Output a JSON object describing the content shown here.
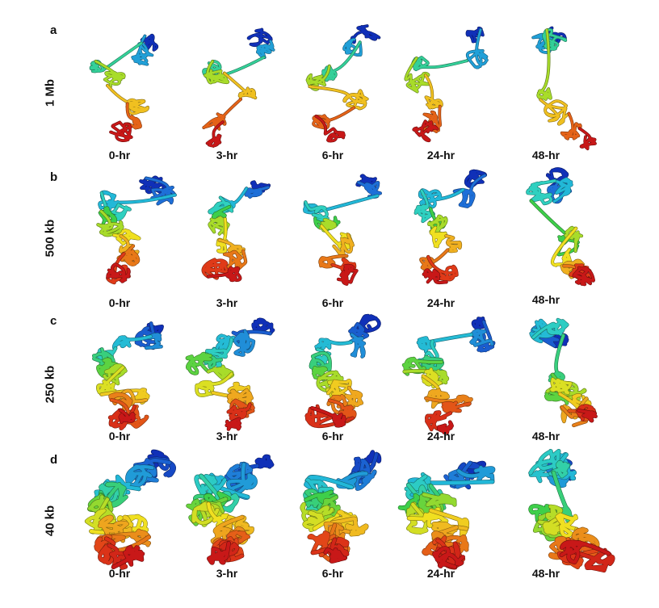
{
  "figure": {
    "panels": [
      {
        "letter": "a",
        "resolution": "1 Mb",
        "timepoints": [
          "0-hr",
          "3-hr",
          "6-hr",
          "24-hr",
          "48-hr"
        ]
      },
      {
        "letter": "b",
        "resolution": "500 kb",
        "timepoints": [
          "0-hr",
          "3-hr",
          "6-hr",
          "24-hr",
          "48-hr"
        ]
      },
      {
        "letter": "c",
        "resolution": "250 kb",
        "timepoints": [
          "0-hr",
          "3-hr",
          "6-hr",
          "24-hr",
          "48-hr"
        ]
      },
      {
        "letter": "d",
        "resolution": "40 kb",
        "timepoints": [
          "0-hr",
          "3-hr",
          "6-hr",
          "24-hr",
          "48-hr"
        ]
      }
    ],
    "colormap": [
      "#1030b8",
      "#1e6fd8",
      "#22b8d8",
      "#2fd0c0",
      "#3ecf4a",
      "#a8dc2a",
      "#f0e020",
      "#f0b020",
      "#e87818",
      "#e03a18",
      "#c81818"
    ]
  }
}
